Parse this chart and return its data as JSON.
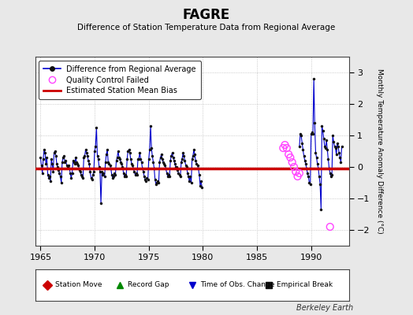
{
  "title": "FAGRE",
  "subtitle": "Difference of Station Temperature Data from Regional Average",
  "ylabel": "Monthly Temperature Anomaly Difference (°C)",
  "credit": "Berkeley Earth",
  "xlim": [
    1964.5,
    1993.5
  ],
  "ylim": [
    -2.5,
    3.5
  ],
  "yticks": [
    -2,
    -1,
    0,
    1,
    2,
    3
  ],
  "xticks": [
    1965,
    1970,
    1975,
    1980,
    1985,
    1990
  ],
  "bias_value": -0.05,
  "background_color": "#e8e8e8",
  "plot_bg_color": "#ffffff",
  "line_color": "#0000cc",
  "bias_color": "#cc0000",
  "qc_color": "#ff44ff",
  "gap_start": 1979.92,
  "gap_end": 1988.92,
  "segment1_years": [
    1965.0,
    1965.08,
    1965.17,
    1965.25,
    1965.33,
    1965.42,
    1965.5,
    1965.58,
    1965.67,
    1965.75,
    1965.83,
    1965.92,
    1966.0,
    1966.08,
    1966.17,
    1966.25,
    1966.33,
    1966.42,
    1966.5,
    1966.58,
    1966.67,
    1966.75,
    1966.83,
    1966.92,
    1967.0,
    1967.08,
    1967.17,
    1967.25,
    1967.33,
    1967.42,
    1967.5,
    1967.58,
    1967.67,
    1967.75,
    1967.83,
    1967.92,
    1968.0,
    1968.08,
    1968.17,
    1968.25,
    1968.33,
    1968.42,
    1968.5,
    1968.58,
    1968.67,
    1968.75,
    1968.83,
    1968.92,
    1969.0,
    1969.08,
    1969.17,
    1969.25,
    1969.33,
    1969.42,
    1969.5,
    1969.58,
    1969.67,
    1969.75,
    1969.83,
    1969.92,
    1970.0,
    1970.08,
    1970.17,
    1970.25,
    1970.33,
    1970.42,
    1970.5,
    1970.58,
    1970.67,
    1970.75,
    1970.83,
    1970.92,
    1971.0,
    1971.08,
    1971.17,
    1971.25,
    1971.33,
    1971.42,
    1971.5,
    1971.58,
    1971.67,
    1971.75,
    1971.83,
    1971.92,
    1972.0,
    1972.08,
    1972.17,
    1972.25,
    1972.33,
    1972.42,
    1972.5,
    1972.58,
    1972.67,
    1972.75,
    1972.83,
    1972.92,
    1973.0,
    1973.08,
    1973.17,
    1973.25,
    1973.33,
    1973.42,
    1973.5,
    1973.58,
    1973.67,
    1973.75,
    1973.83,
    1973.92,
    1974.0,
    1974.08,
    1974.17,
    1974.25,
    1974.33,
    1974.42,
    1974.5,
    1974.58,
    1974.67,
    1974.75,
    1974.83,
    1974.92,
    1975.0,
    1975.08,
    1975.17,
    1975.25,
    1975.33,
    1975.42,
    1975.5,
    1975.58,
    1975.67,
    1975.75,
    1975.83,
    1975.92,
    1976.0,
    1976.08,
    1976.17,
    1976.25,
    1976.33,
    1976.42,
    1976.5,
    1976.58,
    1976.67,
    1976.75,
    1976.83,
    1976.92,
    1977.0,
    1977.08,
    1977.17,
    1977.25,
    1977.33,
    1977.42,
    1977.5,
    1977.58,
    1977.67,
    1977.75,
    1977.83,
    1977.92,
    1978.0,
    1978.08,
    1978.17,
    1978.25,
    1978.33,
    1978.42,
    1978.5,
    1978.58,
    1978.67,
    1978.75,
    1978.83,
    1978.92,
    1979.0,
    1979.08,
    1979.17,
    1979.25,
    1979.33,
    1979.42,
    1979.5,
    1979.58,
    1979.67,
    1979.75,
    1979.83,
    1979.92
  ],
  "segment1_values": [
    0.3,
    0.05,
    -0.2,
    0.25,
    0.55,
    0.45,
    0.1,
    0.3,
    -0.25,
    -0.35,
    -0.3,
    -0.45,
    0.25,
    0.1,
    -0.15,
    0.45,
    0.5,
    0.35,
    0.1,
    0.0,
    -0.1,
    -0.2,
    -0.3,
    -0.5,
    0.15,
    0.3,
    0.35,
    0.15,
    0.2,
    0.05,
    0.0,
    0.05,
    -0.05,
    -0.2,
    -0.35,
    -0.2,
    0.2,
    0.15,
    0.1,
    0.3,
    0.15,
    0.1,
    0.05,
    -0.1,
    -0.15,
    -0.25,
    -0.3,
    -0.35,
    0.3,
    0.35,
    0.55,
    0.45,
    0.35,
    0.2,
    0.1,
    -0.15,
    -0.35,
    -0.4,
    -0.25,
    -0.15,
    0.5,
    0.65,
    1.25,
    0.35,
    0.25,
    0.0,
    -0.15,
    -1.15,
    -0.15,
    -0.25,
    -0.2,
    -0.3,
    0.15,
    0.4,
    0.55,
    0.15,
    0.1,
    0.05,
    -0.05,
    -0.25,
    -0.35,
    -0.3,
    -0.2,
    -0.25,
    0.2,
    0.3,
    0.5,
    0.3,
    0.25,
    0.15,
    0.1,
    0.0,
    -0.2,
    -0.3,
    -0.25,
    -0.3,
    0.25,
    0.5,
    0.55,
    0.45,
    0.25,
    0.1,
    0.05,
    -0.05,
    -0.15,
    -0.25,
    -0.2,
    -0.25,
    0.25,
    0.25,
    0.45,
    0.25,
    0.15,
    -0.05,
    -0.15,
    -0.3,
    -0.4,
    -0.45,
    -0.35,
    -0.4,
    0.25,
    0.55,
    1.3,
    0.6,
    0.35,
    0.15,
    -0.05,
    -0.4,
    -0.55,
    -0.5,
    -0.45,
    -0.5,
    0.15,
    0.3,
    0.4,
    0.25,
    0.15,
    0.1,
    0.05,
    -0.05,
    -0.2,
    -0.3,
    -0.25,
    -0.3,
    0.2,
    0.35,
    0.45,
    0.3,
    0.2,
    0.1,
    0.0,
    0.0,
    -0.1,
    -0.2,
    -0.25,
    -0.3,
    0.15,
    0.25,
    0.45,
    0.35,
    0.2,
    0.05,
    0.0,
    -0.2,
    -0.3,
    -0.45,
    -0.3,
    -0.5,
    0.25,
    0.35,
    0.55,
    0.4,
    0.2,
    0.1,
    0.05,
    -0.05,
    -0.25,
    -0.6,
    -0.45,
    -0.65
  ],
  "segment2_years": [
    1988.92,
    1989.0,
    1989.08,
    1989.17,
    1989.25,
    1989.33,
    1989.42,
    1989.5,
    1989.58,
    1989.67,
    1989.75,
    1989.83,
    1989.92,
    1990.0,
    1990.08,
    1990.17,
    1990.25,
    1990.33,
    1990.42,
    1990.5,
    1990.58,
    1990.67,
    1990.75,
    1990.83,
    1990.92,
    1991.0,
    1991.08,
    1991.17,
    1991.25,
    1991.33,
    1991.42,
    1991.5,
    1991.58,
    1991.67,
    1991.75,
    1991.83,
    1991.92,
    1992.0,
    1992.08,
    1992.17,
    1992.25,
    1992.33,
    1992.42,
    1992.5,
    1992.58,
    1992.67,
    1992.75,
    1992.83
  ],
  "segment2_values": [
    0.65,
    1.05,
    1.0,
    0.75,
    0.55,
    0.35,
    0.2,
    0.1,
    -0.05,
    -0.2,
    -0.3,
    -0.5,
    -0.55,
    1.05,
    1.1,
    1.05,
    2.8,
    1.4,
    0.45,
    0.3,
    0.1,
    -0.05,
    -0.3,
    -0.55,
    -1.35,
    1.3,
    1.15,
    0.9,
    0.65,
    0.6,
    0.85,
    0.55,
    0.25,
    -0.05,
    -0.2,
    -0.3,
    -0.25,
    1.0,
    0.8,
    0.65,
    0.6,
    0.4,
    0.75,
    0.65,
    0.45,
    0.3,
    0.15,
    0.65
  ],
  "qc_years": [
    1987.42,
    1987.58,
    1987.75,
    1987.92,
    1988.08,
    1988.25,
    1988.42,
    1988.58,
    1988.75,
    1988.92,
    1991.75
  ],
  "qc_values": [
    0.6,
    0.7,
    0.6,
    0.4,
    0.3,
    0.15,
    0.0,
    -0.15,
    -0.3,
    -0.2,
    -1.9
  ],
  "legend2_items": [
    {
      "label": "Station Move",
      "color": "#cc0000",
      "marker": "D"
    },
    {
      "label": "Record Gap",
      "color": "#008800",
      "marker": "^"
    },
    {
      "label": "Time of Obs. Change",
      "color": "#0000cc",
      "marker": "v"
    },
    {
      "label": "Empirical Break",
      "color": "#111111",
      "marker": "s"
    }
  ]
}
